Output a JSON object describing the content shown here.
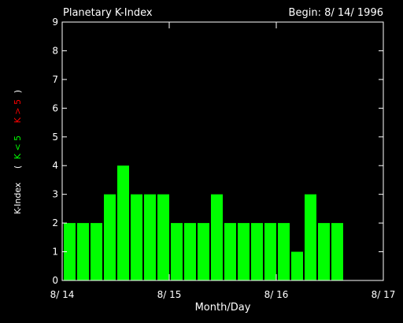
{
  "chart_data": {
    "type": "bar",
    "title": "Planetary K-Index",
    "subtitle": "Begin: 8/ 14/ 1996",
    "xlabel": "Month/Day",
    "ylabel": {
      "base": "K-Index",
      "open": "(",
      "low": "K < 5",
      "high": "K > 5",
      "close": ")"
    },
    "ylim": [
      0,
      9
    ],
    "yticks": [
      "0",
      "1",
      "2",
      "3",
      "4",
      "5",
      "6",
      "7",
      "8",
      "9"
    ],
    "xlim": [
      0,
      24
    ],
    "xticks": [
      {
        "pos": 0,
        "label": "8/ 14"
      },
      {
        "pos": 8,
        "label": "8/ 15"
      },
      {
        "pos": 16,
        "label": "8/ 16"
      },
      {
        "pos": 24,
        "label": "8/ 17"
      }
    ],
    "values": [
      2,
      2,
      2,
      3,
      4,
      3,
      3,
      3,
      2,
      2,
      2,
      3,
      2,
      2,
      2,
      2,
      2,
      1,
      3,
      2,
      2
    ],
    "colors": {
      "background": "#000000",
      "axes": "#ffffff",
      "bar_low": "#00ff00",
      "bar_high": "#ff0000",
      "label_low": "#00ff00",
      "label_high": "#ff0000"
    },
    "grid": false
  }
}
